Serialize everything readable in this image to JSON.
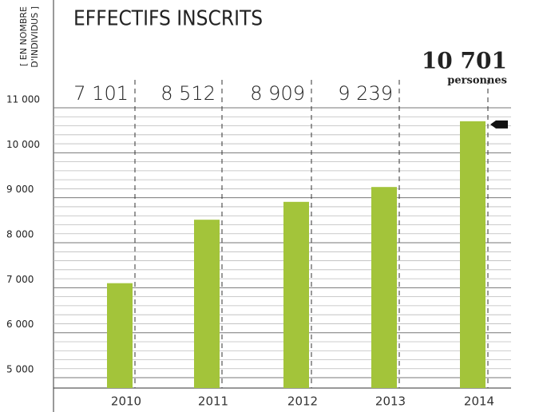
{
  "chart_data": {
    "type": "bar",
    "title": "EFFECTIFS INSCRITS",
    "y_axis_label": [
      "[ EN NOMBRE",
      "D'INDIVIDUS ]"
    ],
    "categories": [
      "2010",
      "2011",
      "2012",
      "2013",
      "2014"
    ],
    "values": [
      7101,
      8512,
      8909,
      9239,
      10701
    ],
    "value_labels": [
      "7 101",
      "8 512",
      "8 909",
      "9 239",
      "10 701"
    ],
    "annotation": "personnes",
    "color": "#a3c43a",
    "ylim": [
      4770,
      11000
    ],
    "yticks": [
      {
        "value": 5000,
        "label": "5 000"
      },
      {
        "value": 6000,
        "label": "6 000"
      },
      {
        "value": 7000,
        "label": "7 000"
      },
      {
        "value": 8000,
        "label": "8 000"
      },
      {
        "value": 9000,
        "label": "9 000"
      },
      {
        "value": 10000,
        "label": "10 000"
      },
      {
        "value": 11000,
        "label": "11 000"
      }
    ],
    "minor_yticks": [
      5200,
      5400,
      5600,
      5800,
      6200,
      6400,
      6600,
      6800,
      7200,
      7400,
      7600,
      7800,
      8200,
      8400,
      8600,
      8800,
      9200,
      9400,
      9600,
      9800,
      10200,
      10400,
      10600,
      10800
    ],
    "grid": true
  }
}
